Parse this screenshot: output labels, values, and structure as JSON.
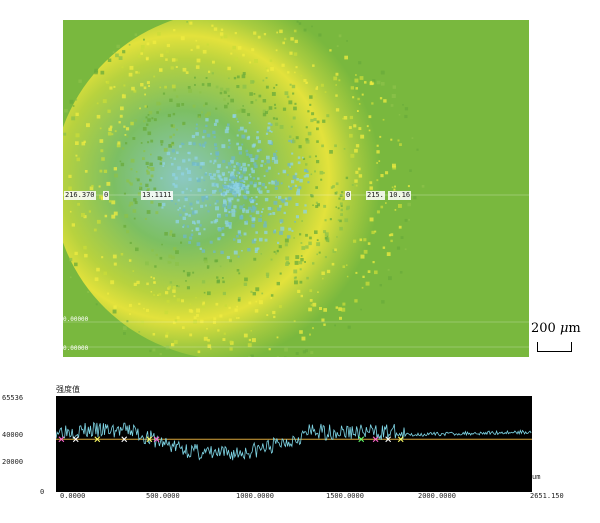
{
  "image": {
    "line_labels": [
      "216.370",
      "0",
      "13.1111",
      "0",
      "215.",
      "10.16"
    ],
    "corner_labels": [
      "0.00000",
      "0.00000"
    ],
    "colors": {
      "background": "#79b83e",
      "ring": "#e6e63a",
      "center": "#7fc9d8"
    }
  },
  "scale_bar": {
    "value": "200",
    "unit_prefix": "μ",
    "unit": "m"
  },
  "profile_plot": {
    "title": "强度值",
    "y_ticks": [
      "65536",
      "40000",
      "20000",
      "0"
    ],
    "x_ticks": [
      "0.0000",
      "500.0000",
      "1000.0000",
      "1500.0000",
      "2000.0000",
      "2651.150"
    ],
    "x_unit": "um",
    "threshold_value": 36000,
    "x_range": [
      0,
      2651.15
    ],
    "y_range": [
      0,
      65536
    ],
    "colors": {
      "background": "#000000",
      "trace": "#7fd6e6",
      "threshold": "#d9a53a"
    }
  }
}
